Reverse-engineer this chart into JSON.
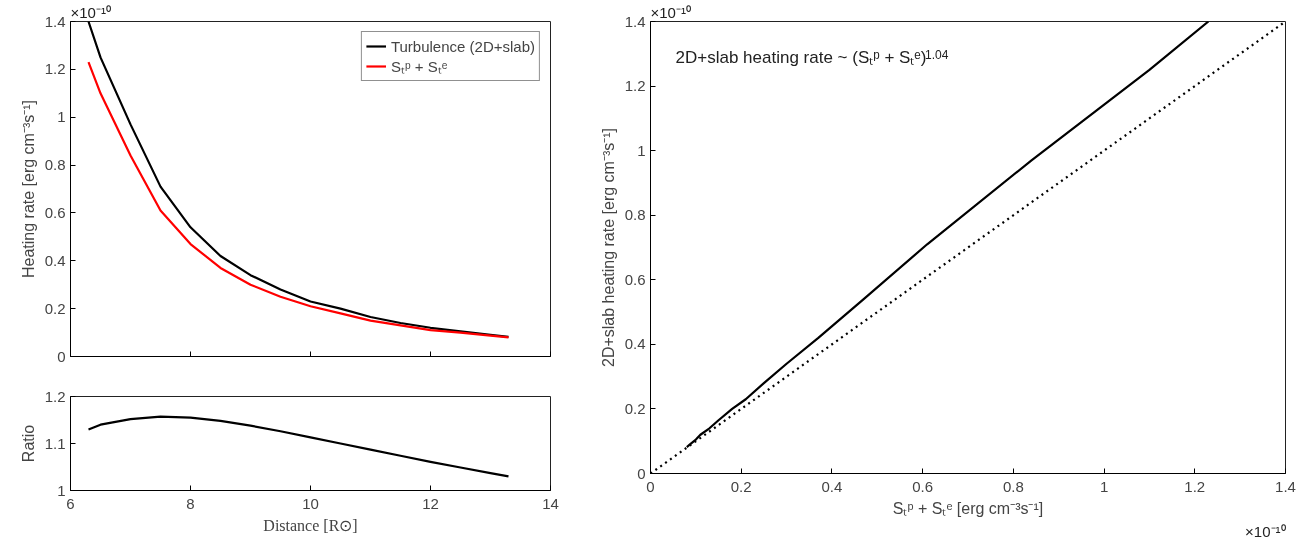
{
  "chart_data": [
    {
      "type": "line",
      "ylabel": "Heating rate [erg cm⁻³s⁻¹]",
      "annotations": [
        "×10⁻¹⁰"
      ],
      "x": [
        6.3,
        6.5,
        7,
        7.5,
        8,
        8.5,
        9,
        9.5,
        10,
        10.5,
        11,
        11.5,
        12,
        12.5,
        13,
        13.3
      ],
      "series": [
        {
          "name": "Turbulence (2D+slab)",
          "color": "#000000",
          "values": [
            1.4,
            1.25,
            0.97,
            0.71,
            0.54,
            0.42,
            0.34,
            0.28,
            0.23,
            0.2,
            0.165,
            0.14,
            0.12,
            0.105,
            0.09,
            0.082
          ]
        },
        {
          "name": "Sₜᵖ + Sₜᵉ",
          "color": "#ff0000",
          "values": [
            1.23,
            1.1,
            0.84,
            0.61,
            0.47,
            0.37,
            0.3,
            0.25,
            0.21,
            0.18,
            0.15,
            0.13,
            0.11,
            0.1,
            0.087,
            0.08
          ]
        }
      ],
      "xlim": [
        6,
        14
      ],
      "xticks": [
        6,
        8,
        10,
        12,
        14
      ],
      "ylim": [
        0,
        1.4
      ],
      "yticks": [
        0,
        0.2,
        0.4,
        0.6,
        0.8,
        1,
        1.2,
        1.4
      ],
      "tick_labels": "y",
      "grid": false,
      "legend": "top right",
      "line_style": "solid"
    },
    {
      "type": "line",
      "xlabel": "Distance [R⊙]",
      "ylabel": "Ratio",
      "x": [
        6.3,
        6.5,
        7,
        7.5,
        8,
        8.5,
        9,
        9.5,
        10,
        10.5,
        11,
        11.5,
        12,
        12.5,
        13,
        13.3
      ],
      "series": [
        {
          "color": "#000000",
          "values": [
            1.13,
            1.14,
            1.152,
            1.157,
            1.155,
            1.148,
            1.138,
            1.126,
            1.113,
            1.1,
            1.087,
            1.074,
            1.061,
            1.049,
            1.037,
            1.03
          ]
        }
      ],
      "xlim": [
        6,
        14
      ],
      "xticks": [
        6,
        8,
        10,
        12,
        14
      ],
      "ylim": [
        1,
        1.2
      ],
      "yticks": [
        1,
        1.1,
        1.2
      ],
      "grid": false,
      "line_style": "solid"
    },
    {
      "type": "line",
      "xlabel": "Sₜᵖ + Sₜᵉ [erg cm⁻³s⁻¹]",
      "ylabel": "2D+slab heating rate [erg cm⁻³s⁻¹]",
      "annotations": [
        "2D+slab heating rate ~ (Sₜᵖ + Sₜᵉ)$^{1.04}$",
        "×10⁻¹⁰",
        "×10⁻¹⁰"
      ],
      "series": [
        {
          "color": "#000000",
          "x": [
            0.08,
            0.087,
            0.1,
            0.11,
            0.13,
            0.15,
            0.18,
            0.21,
            0.25,
            0.3,
            0.37,
            0.47,
            0.61,
            0.84,
            1.1,
            1.23
          ],
          "values": [
            0.082,
            0.09,
            0.105,
            0.12,
            0.14,
            0.165,
            0.2,
            0.23,
            0.28,
            0.34,
            0.42,
            0.54,
            0.71,
            0.97,
            1.25,
            1.4
          ],
          "line_style": "solid"
        },
        {
          "color": "#000000",
          "x": [
            0,
            1.4
          ],
          "values": [
            0,
            1.4
          ],
          "line_style": "dotted"
        }
      ],
      "xlim": [
        0,
        1.4
      ],
      "xticks": [
        0,
        0.2,
        0.4,
        0.6,
        0.8,
        1,
        1.2,
        1.4
      ],
      "ylim": [
        0,
        1.4
      ],
      "yticks": [
        0,
        0.2,
        0.4,
        0.6,
        0.8,
        1,
        1.2,
        1.4
      ],
      "grid": false
    }
  ]
}
